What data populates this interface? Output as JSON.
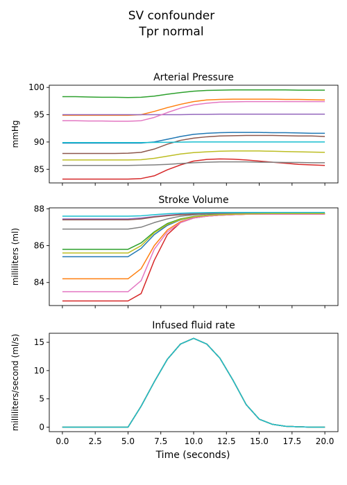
{
  "figure": {
    "suptitle_line1": "SV confounder",
    "suptitle_line2": "Tpr normal",
    "xlabel": "Time (seconds)"
  },
  "colors": [
    "#1f77b4",
    "#ff7f0e",
    "#2ca02c",
    "#d62728",
    "#9467bd",
    "#8c564b",
    "#e377c2",
    "#7f7f7f",
    "#bcbd22",
    "#17becf"
  ],
  "chart_data": [
    {
      "type": "line",
      "title": "Arterial Pressure",
      "ylabel": "mmHg",
      "xlim": [
        -1,
        21
      ],
      "ylim": [
        82.5,
        100.4
      ],
      "xticks": [
        0,
        2.5,
        5,
        7.5,
        10,
        12.5,
        15,
        17.5,
        20
      ],
      "xtick_labels": [],
      "yticks": [
        85,
        90,
        95,
        100
      ],
      "ytick_labels": [
        "85",
        "90",
        "95",
        "100"
      ],
      "x": [
        0,
        1,
        2,
        3,
        4,
        5,
        6,
        7,
        8,
        9,
        10,
        11,
        12,
        13,
        14,
        15,
        16,
        17,
        18,
        19,
        20
      ],
      "series": [
        {
          "values": [
            89.8,
            89.8,
            89.8,
            89.8,
            89.8,
            89.8,
            89.8,
            90.0,
            90.5,
            91.0,
            91.4,
            91.6,
            91.7,
            91.75,
            91.75,
            91.75,
            91.7,
            91.7,
            91.65,
            91.6,
            91.6
          ]
        },
        {
          "values": [
            94.9,
            94.9,
            94.9,
            94.9,
            94.9,
            94.9,
            95.0,
            95.6,
            96.3,
            96.9,
            97.4,
            97.7,
            97.8,
            97.85,
            97.85,
            97.85,
            97.85,
            97.8,
            97.8,
            97.75,
            97.7
          ]
        },
        {
          "values": [
            98.3,
            98.3,
            98.25,
            98.2,
            98.2,
            98.15,
            98.2,
            98.4,
            98.75,
            99.05,
            99.3,
            99.45,
            99.5,
            99.55,
            99.55,
            99.55,
            99.55,
            99.55,
            99.5,
            99.5,
            99.5
          ]
        },
        {
          "values": [
            83.2,
            83.2,
            83.2,
            83.2,
            83.2,
            83.2,
            83.3,
            83.8,
            84.9,
            85.8,
            86.5,
            86.8,
            86.9,
            86.85,
            86.7,
            86.5,
            86.3,
            86.1,
            85.9,
            85.8,
            85.7
          ]
        },
        {
          "values": [
            95.0,
            95.0,
            95.0,
            95.0,
            95.0,
            95.0,
            95.0,
            95.0,
            95.0,
            95.0,
            95.05,
            95.05,
            95.1,
            95.1,
            95.1,
            95.1,
            95.1,
            95.1,
            95.1,
            95.1,
            95.1
          ]
        },
        {
          "values": [
            87.9,
            87.9,
            87.9,
            87.9,
            87.9,
            87.95,
            88.1,
            88.7,
            89.6,
            90.3,
            90.7,
            90.95,
            91.1,
            91.15,
            91.2,
            91.2,
            91.2,
            91.15,
            91.1,
            91.1,
            91.0
          ]
        },
        {
          "values": [
            93.9,
            93.9,
            93.85,
            93.85,
            93.8,
            93.8,
            93.9,
            94.5,
            95.4,
            96.2,
            96.8,
            97.1,
            97.3,
            97.35,
            97.4,
            97.4,
            97.4,
            97.4,
            97.4,
            97.4,
            97.4
          ]
        },
        {
          "values": [
            85.7,
            85.7,
            85.7,
            85.7,
            85.7,
            85.7,
            85.75,
            85.8,
            85.9,
            86.05,
            86.2,
            86.3,
            86.35,
            86.35,
            86.35,
            86.3,
            86.3,
            86.25,
            86.25,
            86.2,
            86.2
          ]
        },
        {
          "values": [
            86.7,
            86.7,
            86.7,
            86.7,
            86.7,
            86.7,
            86.75,
            87.0,
            87.4,
            87.8,
            88.05,
            88.2,
            88.3,
            88.35,
            88.35,
            88.35,
            88.3,
            88.25,
            88.2,
            88.15,
            88.1
          ]
        },
        {
          "values": [
            89.9,
            89.9,
            89.9,
            89.9,
            89.9,
            89.9,
            89.9,
            89.92,
            89.95,
            89.98,
            90.0,
            90.0,
            90.0,
            90.0,
            90.0,
            90.0,
            90.0,
            90.0,
            90.0,
            90.0,
            90.0
          ]
        }
      ]
    },
    {
      "type": "line",
      "title": "Stroke Volume",
      "ylabel": "milliliters (ml)",
      "xlim": [
        -1,
        21
      ],
      "ylim": [
        82.75,
        88.05
      ],
      "xticks": [
        0,
        2.5,
        5,
        7.5,
        10,
        12.5,
        15,
        17.5,
        20
      ],
      "xtick_labels": [],
      "yticks": [
        84,
        86,
        88
      ],
      "ytick_labels": [
        "84",
        "86",
        "88"
      ],
      "x": [
        0,
        1,
        2,
        3,
        4,
        5,
        6,
        7,
        8,
        9,
        10,
        11,
        12,
        13,
        14,
        15,
        16,
        17,
        18,
        19,
        20
      ],
      "series": [
        {
          "values": [
            85.4,
            85.4,
            85.4,
            85.4,
            85.4,
            85.4,
            85.85,
            86.6,
            87.1,
            87.4,
            87.55,
            87.65,
            87.7,
            87.72,
            87.73,
            87.74,
            87.75,
            87.75,
            87.75,
            87.75,
            87.75
          ]
        },
        {
          "values": [
            84.2,
            84.2,
            84.2,
            84.2,
            84.2,
            84.2,
            84.75,
            86.0,
            86.85,
            87.3,
            87.5,
            87.6,
            87.65,
            87.68,
            87.7,
            87.7,
            87.7,
            87.7,
            87.7,
            87.7,
            87.7
          ]
        },
        {
          "values": [
            85.8,
            85.8,
            85.8,
            85.8,
            85.8,
            85.8,
            86.15,
            86.75,
            87.2,
            87.45,
            87.58,
            87.65,
            87.7,
            87.72,
            87.73,
            87.74,
            87.75,
            87.75,
            87.75,
            87.75,
            87.75
          ]
        },
        {
          "values": [
            83.0,
            83.0,
            83.0,
            83.0,
            83.0,
            83.0,
            83.4,
            85.2,
            86.6,
            87.25,
            87.5,
            87.6,
            87.65,
            87.68,
            87.7,
            87.7,
            87.7,
            87.7,
            87.7,
            87.7,
            87.7
          ]
        },
        {
          "values": [
            87.45,
            87.45,
            87.45,
            87.45,
            87.45,
            87.45,
            87.5,
            87.58,
            87.65,
            87.7,
            87.72,
            87.74,
            87.75,
            87.75,
            87.76,
            87.76,
            87.76,
            87.76,
            87.76,
            87.76,
            87.76
          ]
        },
        {
          "values": [
            87.4,
            87.4,
            87.4,
            87.4,
            87.4,
            87.4,
            87.45,
            87.55,
            87.62,
            87.68,
            87.71,
            87.73,
            87.74,
            87.75,
            87.75,
            87.75,
            87.75,
            87.75,
            87.75,
            87.75,
            87.75
          ]
        },
        {
          "values": [
            83.5,
            83.5,
            83.5,
            83.5,
            83.5,
            83.5,
            84.1,
            85.8,
            86.75,
            87.25,
            87.5,
            87.6,
            87.65,
            87.68,
            87.7,
            87.7,
            87.7,
            87.7,
            87.7,
            87.7,
            87.7
          ]
        },
        {
          "values": [
            86.9,
            86.9,
            86.9,
            86.9,
            86.9,
            86.9,
            87.0,
            87.25,
            87.45,
            87.6,
            87.67,
            87.71,
            87.73,
            87.74,
            87.75,
            87.75,
            87.75,
            87.75,
            87.75,
            87.75,
            87.75
          ]
        },
        {
          "values": [
            85.6,
            85.6,
            85.6,
            85.6,
            85.6,
            85.6,
            86.0,
            86.7,
            87.15,
            87.42,
            87.56,
            87.64,
            87.68,
            87.7,
            87.72,
            87.73,
            87.74,
            87.74,
            87.74,
            87.74,
            87.74
          ]
        },
        {
          "values": [
            87.6,
            87.6,
            87.6,
            87.6,
            87.6,
            87.6,
            87.62,
            87.68,
            87.73,
            87.76,
            87.78,
            87.79,
            87.8,
            87.8,
            87.8,
            87.8,
            87.8,
            87.8,
            87.8,
            87.8,
            87.8
          ]
        }
      ]
    },
    {
      "type": "line",
      "title": "Infused fluid rate",
      "ylabel": "milliliters/second (ml/s)",
      "xlim": [
        -1,
        21
      ],
      "ylim": [
        -0.8,
        16.6
      ],
      "xticks": [
        0,
        2.5,
        5,
        7.5,
        10,
        12.5,
        15,
        17.5,
        20
      ],
      "xtick_labels": [
        "0.0",
        "2.5",
        "5.0",
        "7.5",
        "10.0",
        "12.5",
        "15.0",
        "17.5",
        "20.0"
      ],
      "yticks": [
        0,
        5,
        10,
        15
      ],
      "ytick_labels": [
        "0",
        "5",
        "10",
        "15"
      ],
      "x": [
        0,
        1,
        2,
        3,
        4,
        5,
        6,
        7,
        8,
        9,
        10,
        11,
        12,
        13,
        14,
        15,
        16,
        17,
        18,
        19,
        20
      ],
      "series": [
        {
          "values": [
            0,
            0,
            0,
            0,
            0,
            0,
            3.7,
            8.0,
            12.0,
            14.7,
            15.7,
            14.7,
            12.2,
            8.3,
            4.0,
            1.4,
            0.5,
            0.15,
            0.05,
            0,
            0
          ]
        },
        {
          "values": [
            0,
            0,
            0,
            0,
            0,
            0,
            3.7,
            8.0,
            12.0,
            14.7,
            15.7,
            14.7,
            12.2,
            8.3,
            4.0,
            1.4,
            0.5,
            0.15,
            0.05,
            0,
            0
          ]
        },
        {
          "values": [
            0,
            0,
            0,
            0,
            0,
            0,
            3.7,
            8.0,
            12.0,
            14.7,
            15.7,
            14.7,
            12.2,
            8.3,
            4.0,
            1.4,
            0.5,
            0.15,
            0.05,
            0,
            0
          ]
        },
        {
          "values": [
            0,
            0,
            0,
            0,
            0,
            0,
            3.7,
            8.0,
            12.0,
            14.7,
            15.7,
            14.7,
            12.2,
            8.3,
            4.0,
            1.4,
            0.5,
            0.15,
            0.05,
            0,
            0
          ]
        },
        {
          "values": [
            0,
            0,
            0,
            0,
            0,
            0,
            3.7,
            8.0,
            12.0,
            14.7,
            15.7,
            14.7,
            12.2,
            8.3,
            4.0,
            1.4,
            0.5,
            0.15,
            0.05,
            0,
            0
          ]
        },
        {
          "values": [
            0,
            0,
            0,
            0,
            0,
            0,
            3.7,
            8.0,
            12.0,
            14.7,
            15.7,
            14.7,
            12.2,
            8.3,
            4.0,
            1.4,
            0.5,
            0.15,
            0.05,
            0,
            0
          ]
        },
        {
          "values": [
            0,
            0,
            0,
            0,
            0,
            0,
            3.7,
            8.0,
            12.0,
            14.7,
            15.7,
            14.7,
            12.2,
            8.3,
            4.0,
            1.4,
            0.5,
            0.15,
            0.05,
            0,
            0
          ]
        },
        {
          "values": [
            0,
            0,
            0,
            0,
            0,
            0,
            3.7,
            8.0,
            12.0,
            14.7,
            15.7,
            14.7,
            12.2,
            8.3,
            4.0,
            1.4,
            0.5,
            0.15,
            0.05,
            0,
            0
          ]
        },
        {
          "values": [
            0,
            0,
            0,
            0,
            0,
            0,
            3.7,
            8.0,
            12.0,
            14.7,
            15.7,
            14.7,
            12.2,
            8.3,
            4.0,
            1.4,
            0.5,
            0.15,
            0.05,
            0,
            0
          ]
        },
        {
          "values": [
            0,
            0,
            0,
            0,
            0,
            0,
            3.7,
            8.0,
            12.0,
            14.7,
            15.7,
            14.7,
            12.2,
            8.3,
            4.0,
            1.4,
            0.5,
            0.15,
            0.05,
            0,
            0
          ]
        }
      ]
    }
  ]
}
